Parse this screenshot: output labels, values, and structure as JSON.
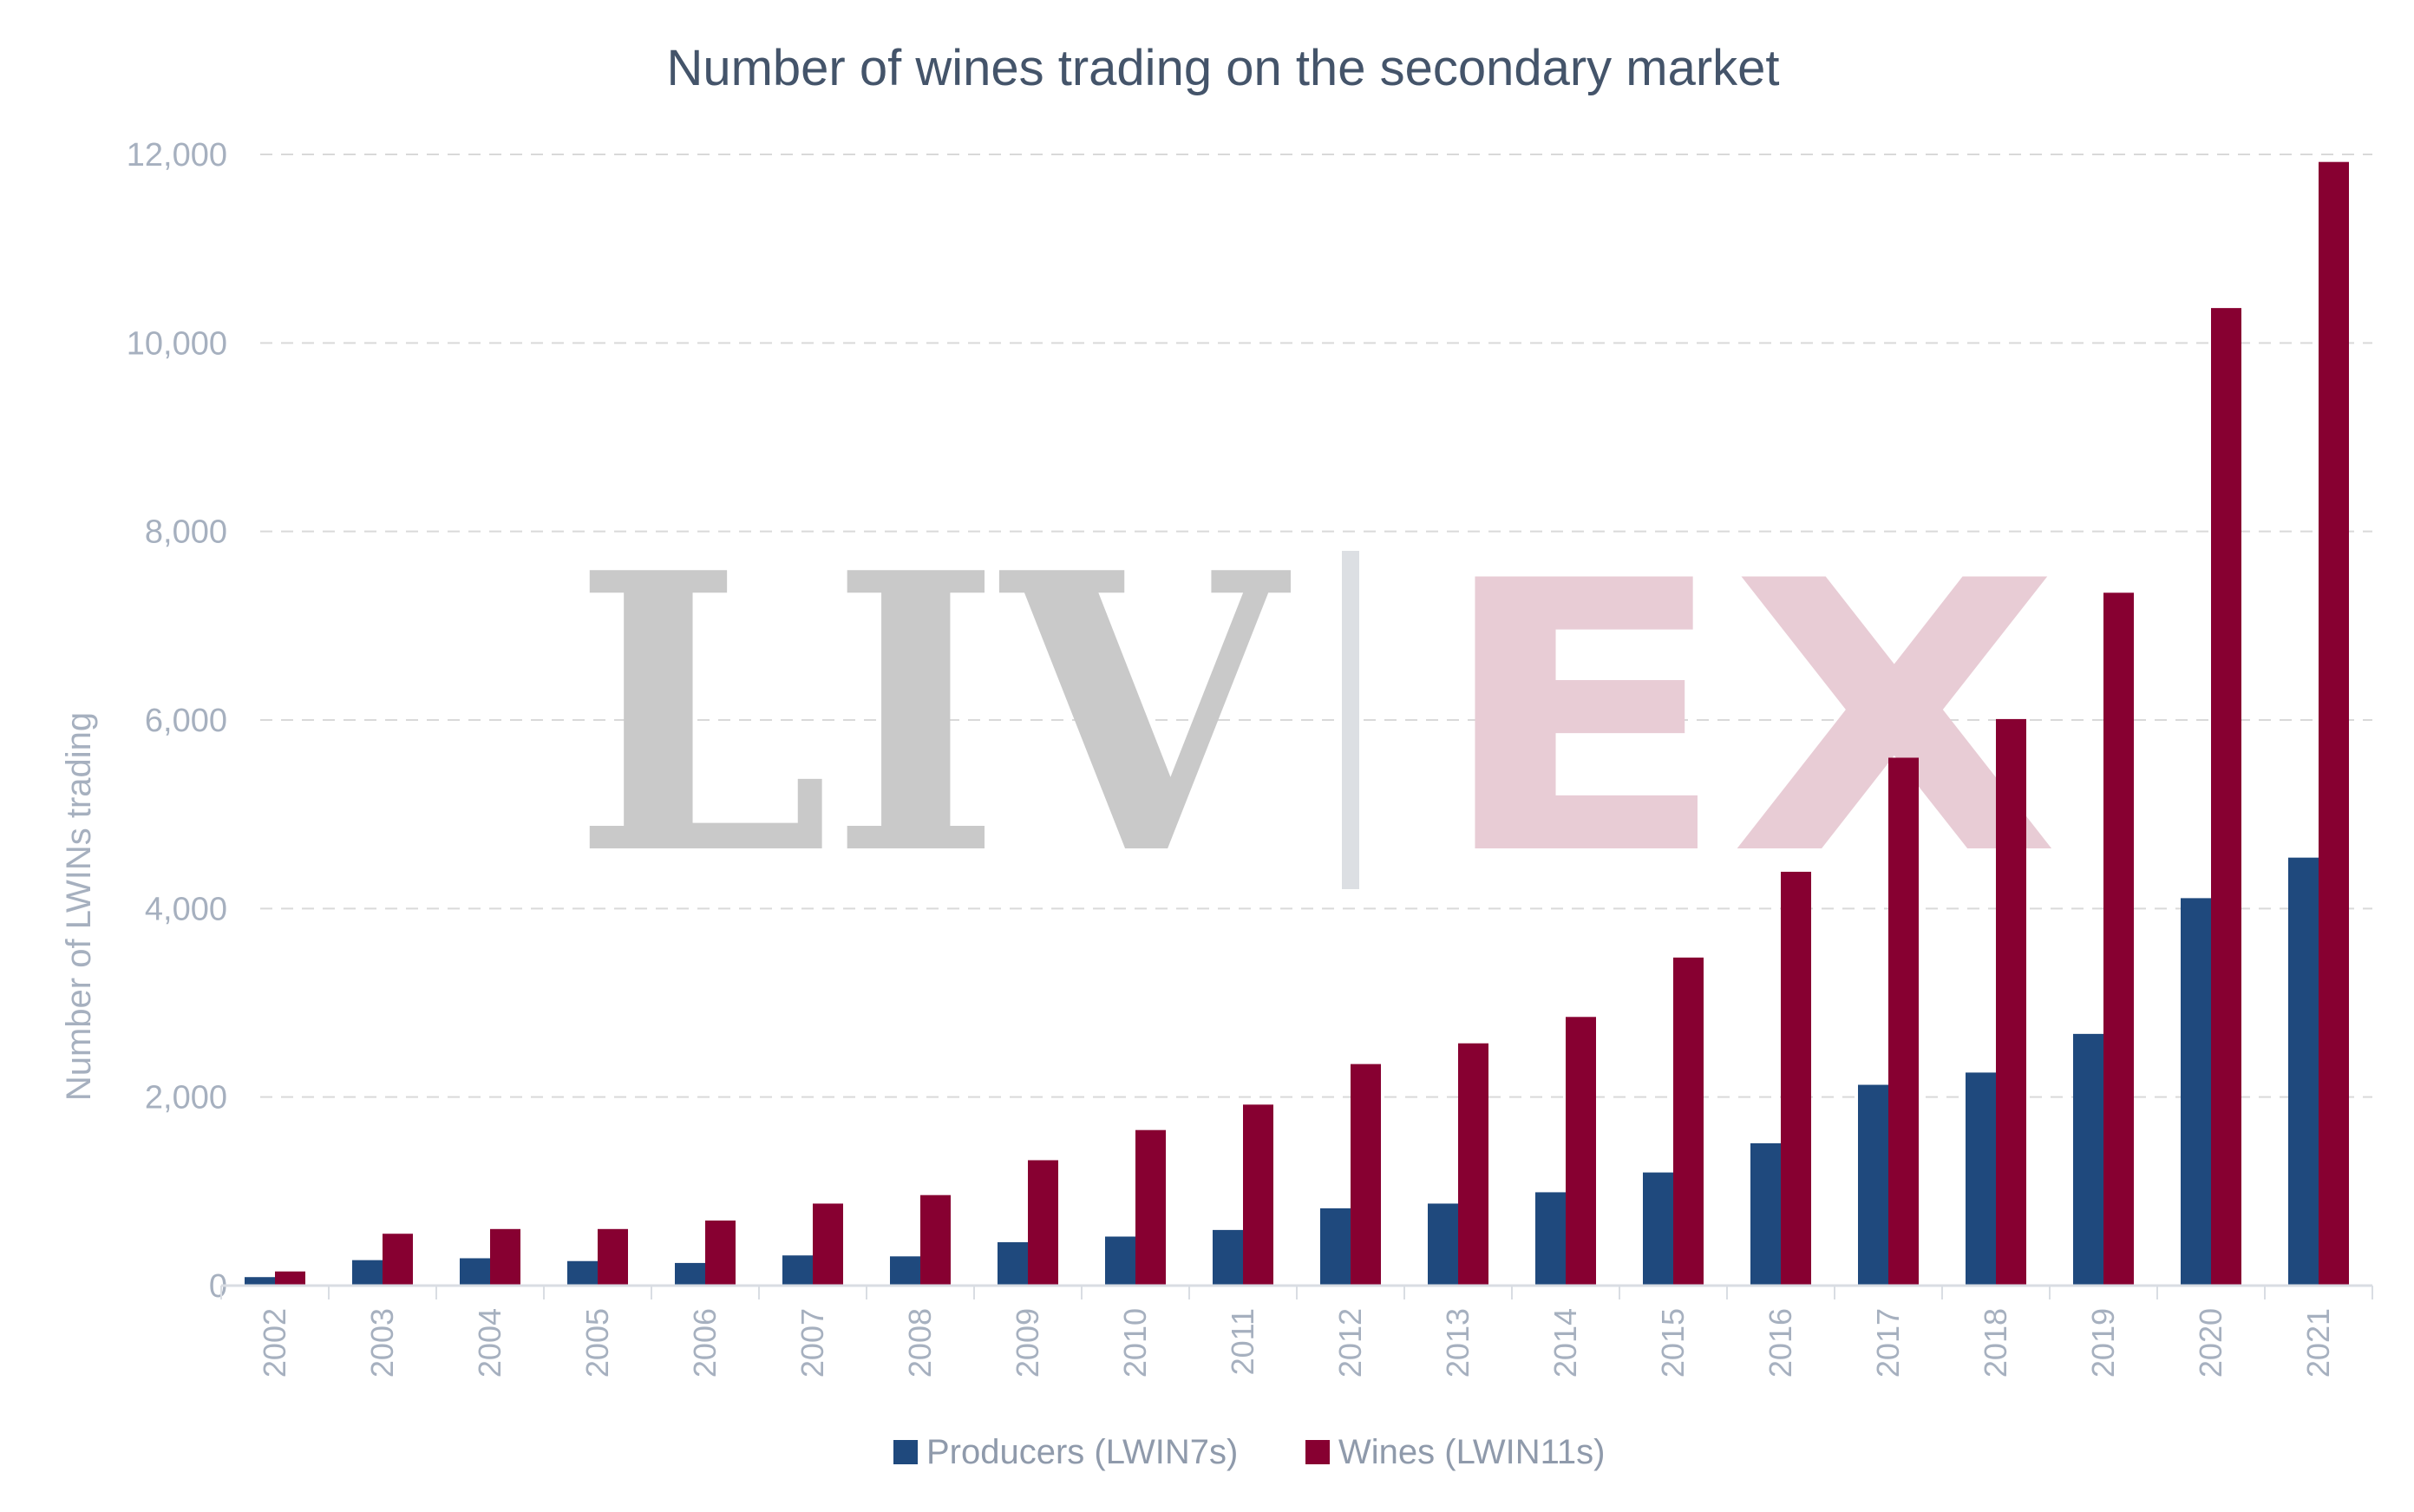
{
  "chart_data": {
    "type": "bar",
    "title": "Number of wines trading on the secondary market",
    "ylabel": "Number of LWINs trading",
    "xlabel": "",
    "ylim": [
      0,
      12000
    ],
    "yticks": [
      0,
      2000,
      4000,
      6000,
      8000,
      10000,
      12000
    ],
    "ytick_labels": [
      "0",
      "2,000",
      "4,000",
      "6,000",
      "8,000",
      "10,000",
      "12,000"
    ],
    "grid": true,
    "legend_position": "bottom",
    "categories": [
      "2002",
      "2003",
      "2004",
      "2005",
      "2006",
      "2007",
      "2008",
      "2009",
      "2010",
      "2011",
      "2012",
      "2013",
      "2014",
      "2015",
      "2016",
      "2017",
      "2018",
      "2019",
      "2020",
      "2021"
    ],
    "series": [
      {
        "name": "Producers (LWIN7s)",
        "color": "#1f497d",
        "values": [
          90,
          270,
          290,
          260,
          240,
          320,
          310,
          460,
          520,
          590,
          820,
          870,
          990,
          1200,
          1510,
          2130,
          2260,
          2670,
          4110,
          4540
        ]
      },
      {
        "name": "Wines (LWIN11s)",
        "color": "#870031",
        "values": [
          150,
          550,
          600,
          600,
          690,
          870,
          960,
          1330,
          1650,
          1920,
          2350,
          2570,
          2850,
          3480,
          4390,
          5600,
          6010,
          7350,
          10370,
          11920
        ]
      }
    ],
    "watermark": {
      "left_text": "LIV",
      "right_text": "EX",
      "left_color": "#c9c9c9",
      "right_color": "#e8ccd5"
    }
  }
}
